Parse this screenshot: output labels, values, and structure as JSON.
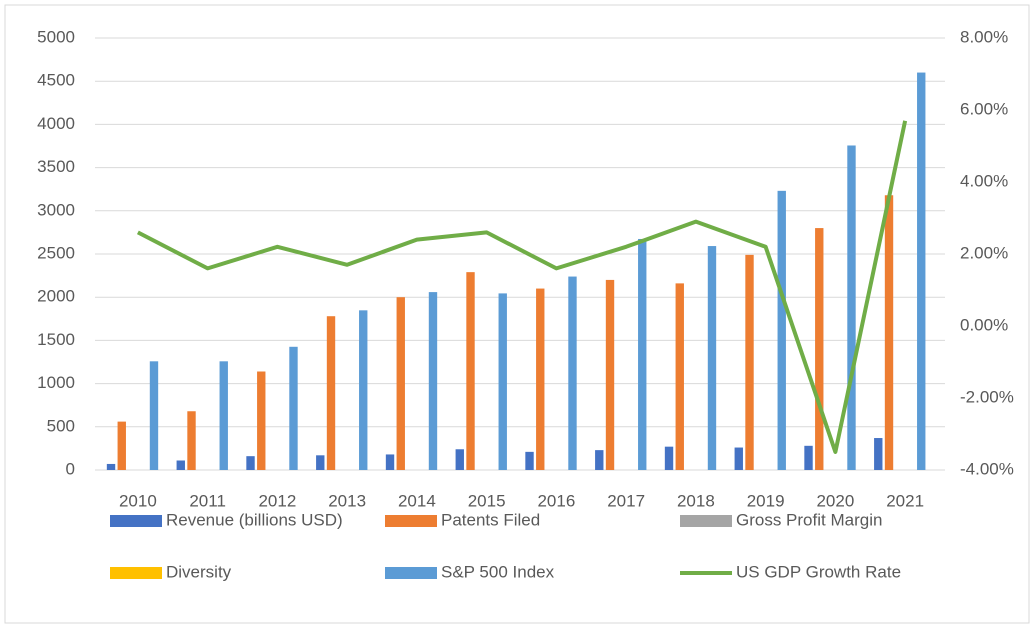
{
  "chart_data": {
    "type": "bar",
    "categories": [
      "2010",
      "2011",
      "2012",
      "2013",
      "2014",
      "2015",
      "2016",
      "2017",
      "2018",
      "2019",
      "2020",
      "2021"
    ],
    "series": [
      {
        "name": "Revenue (billions USD)",
        "color": "#4472c4",
        "values": [
          70,
          110,
          160,
          170,
          180,
          240,
          210,
          230,
          270,
          260,
          280,
          370
        ]
      },
      {
        "name": "Patents Filed",
        "color": "#ed7d31",
        "values": [
          560,
          680,
          1140,
          1780,
          2000,
          2290,
          2100,
          2200,
          2160,
          2490,
          2800,
          3180
        ]
      },
      {
        "name": "Gross Profit Margin",
        "color": "#a5a5a5",
        "values": [
          null,
          null,
          null,
          null,
          null,
          null,
          null,
          null,
          null,
          null,
          null,
          null
        ]
      },
      {
        "name": "Diversity",
        "color": "#ffc000",
        "values": [
          null,
          null,
          null,
          null,
          null,
          null,
          null,
          null,
          null,
          null,
          null,
          null
        ]
      },
      {
        "name": "S&P 500 Index",
        "color": "#5b9bd5",
        "values": [
          1258,
          1258,
          1426,
          1848,
          2059,
          2044,
          2239,
          2674,
          2592,
          3231,
          3756,
          4600
        ]
      },
      {
        "name": "US GDP Growth Rate",
        "color": "#70ad47",
        "type": "line",
        "axis": "y2",
        "values": [
          2.6,
          1.6,
          2.2,
          1.7,
          2.4,
          2.6,
          1.6,
          2.2,
          2.9,
          2.2,
          -3.5,
          5.7
        ]
      }
    ],
    "ylim": [
      0,
      5000
    ],
    "yticks": [
      0,
      500,
      1000,
      1500,
      2000,
      2500,
      3000,
      3500,
      4000,
      4500,
      5000
    ],
    "y2lim": [
      -4,
      8
    ],
    "y2ticks": [
      {
        "value": -4,
        "label": "-4.00%"
      },
      {
        "value": -2,
        "label": "-2.00%"
      },
      {
        "value": 0,
        "label": "0.00%"
      },
      {
        "value": 2,
        "label": "2.00%"
      },
      {
        "value": 4,
        "label": "4.00%"
      },
      {
        "value": 6,
        "label": "6.00%"
      },
      {
        "value": 8,
        "label": "8.00%"
      }
    ],
    "grid": true,
    "legend": "bottom"
  }
}
